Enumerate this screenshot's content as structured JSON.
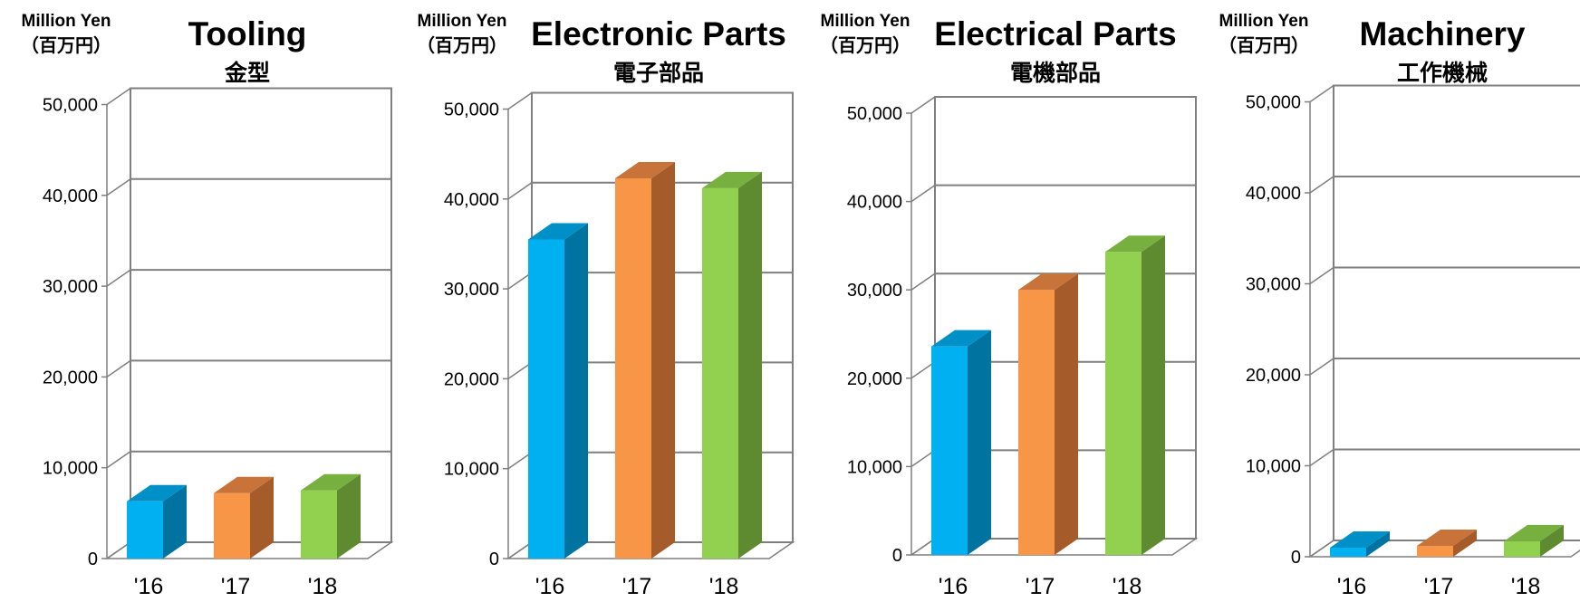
{
  "unit": {
    "en": "Million Yen",
    "ja": "（百万円）"
  },
  "colors": {
    "y16": {
      "front": "#00b0f0",
      "side": "#0073a0",
      "top": "#0090c8"
    },
    "y17": {
      "front": "#f79646",
      "side": "#a65c2a",
      "top": "#c8733a"
    },
    "y18": {
      "front": "#92d050",
      "side": "#5e8a30",
      "top": "#78b040"
    },
    "frame": "#7f7f7f"
  },
  "chart_data": [
    {
      "type": "bar",
      "title": "Tooling",
      "subtitle": "金型",
      "categories": [
        "'16",
        "'17",
        "'18"
      ],
      "values": [
        6300,
        7200,
        7500
      ],
      "ylim": [
        0,
        50000
      ],
      "yticks": [
        "0",
        "10,000",
        "20,000",
        "30,000",
        "40,000",
        "50,000"
      ],
      "grid": true
    },
    {
      "type": "bar",
      "title": "Electronic Parts",
      "subtitle": "電子部品",
      "categories": [
        "'16",
        "'17",
        "'18"
      ],
      "values": [
        35500,
        42300,
        41200
      ],
      "ylim": [
        0,
        50000
      ],
      "yticks": [
        "0",
        "10,000",
        "20,000",
        "30,000",
        "40,000",
        "50,000"
      ],
      "grid": true
    },
    {
      "type": "bar",
      "title": "Electrical Parts",
      "subtitle": "電機部品",
      "categories": [
        "'16",
        "'17",
        "'18"
      ],
      "values": [
        23600,
        30000,
        34300
      ],
      "ylim": [
        0,
        50000
      ],
      "yticks": [
        "0",
        "10,000",
        "20,000",
        "30,000",
        "40,000",
        "50,000"
      ],
      "grid": true
    },
    {
      "type": "bar",
      "title": "Machinery",
      "subtitle": "工作機械",
      "categories": [
        "'16",
        "'17",
        "'18"
      ],
      "values": [
        1000,
        1200,
        1700
      ],
      "ylim": [
        0,
        50000
      ],
      "yticks": [
        "0",
        "10,000",
        "20,000",
        "30,000",
        "40,000",
        "50,000"
      ],
      "grid": true
    }
  ]
}
